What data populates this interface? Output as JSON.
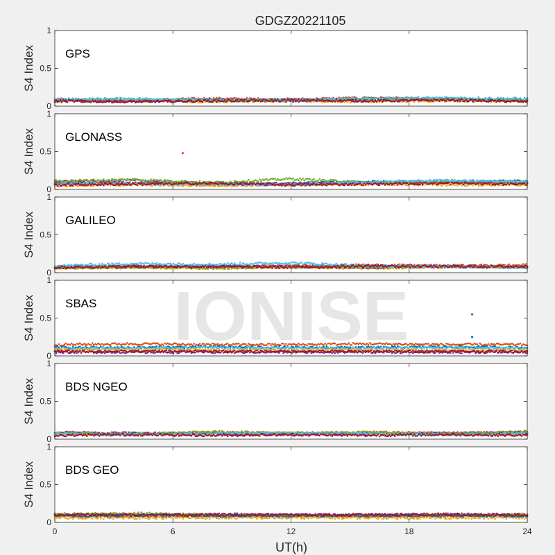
{
  "figure": {
    "title": "GDGZ20221105",
    "xlabel": "UT(h)",
    "watermark": "IONISE"
  },
  "chart_data": [
    {
      "type": "scatter",
      "constellation": "GPS",
      "ylabel": "S4 Index",
      "xlim": [
        0,
        24
      ],
      "ylim": [
        0,
        1
      ],
      "xticks": [
        "0",
        "6",
        "12",
        "18",
        "24"
      ],
      "yticks": [
        "0",
        "0.5",
        "1"
      ],
      "baseline_series": [
        {
          "color": "#0072bd",
          "y": [
            0.08,
            0.07,
            0.09,
            0.08,
            0.1,
            0.09,
            0.08
          ]
        },
        {
          "color": "#d95319",
          "y": [
            0.09,
            0.08,
            0.1,
            0.09,
            0.11,
            0.09,
            0.08
          ]
        },
        {
          "color": "#edb120",
          "y": [
            0.06,
            0.07,
            0.06,
            0.07,
            0.06,
            0.07,
            0.06
          ]
        },
        {
          "color": "#7e2f8e",
          "y": [
            0.07,
            0.06,
            0.08,
            0.07,
            0.08,
            0.09,
            0.07
          ]
        },
        {
          "color": "#77ac30",
          "y": [
            0.08,
            0.09,
            0.07,
            0.08,
            0.09,
            0.1,
            0.08
          ]
        },
        {
          "color": "#4dbeee",
          "y": [
            0.09,
            0.1,
            0.08,
            0.09,
            0.1,
            0.11,
            0.1
          ]
        },
        {
          "color": "#a2142f",
          "y": [
            0.07,
            0.06,
            0.07,
            0.08,
            0.07,
            0.08,
            0.06
          ]
        }
      ],
      "outliers": []
    },
    {
      "type": "scatter",
      "constellation": "GLONASS",
      "ylabel": "S4 Index",
      "xlim": [
        0,
        24
      ],
      "ylim": [
        0,
        1
      ],
      "xticks": [
        "0",
        "6",
        "12",
        "18",
        "24"
      ],
      "yticks": [
        "0",
        "0.5",
        "1"
      ],
      "baseline_series": [
        {
          "color": "#0072bd",
          "y": [
            0.09,
            0.08,
            0.07,
            0.08,
            0.1,
            0.1,
            0.11
          ]
        },
        {
          "color": "#d95319",
          "y": [
            0.07,
            0.08,
            0.06,
            0.07,
            0.08,
            0.09,
            0.08
          ]
        },
        {
          "color": "#edb120",
          "y": [
            0.05,
            0.06,
            0.05,
            0.06,
            0.07,
            0.06,
            0.06
          ]
        },
        {
          "color": "#7e2f8e",
          "y": [
            0.1,
            0.12,
            0.08,
            0.07,
            0.09,
            0.1,
            0.09
          ]
        },
        {
          "color": "#77ac30",
          "y": [
            0.11,
            0.13,
            0.09,
            0.14,
            0.09,
            0.11,
            0.1
          ]
        },
        {
          "color": "#4dbeee",
          "y": [
            0.08,
            0.07,
            0.07,
            0.06,
            0.1,
            0.12,
            0.1
          ]
        },
        {
          "color": "#a2142f",
          "y": [
            0.06,
            0.07,
            0.08,
            0.06,
            0.07,
            0.08,
            0.07
          ]
        }
      ],
      "outliers": [
        {
          "x": 6.5,
          "y": 0.48,
          "color": "#d95319"
        }
      ]
    },
    {
      "type": "scatter",
      "constellation": "GALILEO",
      "ylabel": "S4 Index",
      "xlim": [
        0,
        24
      ],
      "ylim": [
        0,
        1
      ],
      "xticks": [
        "0",
        "6",
        "12",
        "18",
        "24"
      ],
      "yticks": [
        "0",
        "0.5",
        "1"
      ],
      "baseline_series": [
        {
          "color": "#0072bd",
          "y": [
            0.07,
            0.08,
            0.07,
            0.08,
            0.07,
            0.08,
            0.07
          ]
        },
        {
          "color": "#d95319",
          "y": [
            0.08,
            0.09,
            0.08,
            0.09,
            0.1,
            0.09,
            0.1
          ]
        },
        {
          "color": "#edb120",
          "y": [
            0.06,
            0.07,
            0.06,
            0.07,
            0.06,
            0.07,
            0.08
          ]
        },
        {
          "color": "#7e2f8e",
          "y": [
            0.07,
            0.08,
            0.09,
            0.08,
            0.07,
            0.09,
            0.08
          ]
        },
        {
          "color": "#77ac30",
          "y": [
            0.06,
            0.07,
            0.06,
            0.08,
            0.07,
            0.08,
            0.07
          ]
        },
        {
          "color": "#4dbeee",
          "y": [
            0.09,
            0.12,
            0.11,
            0.13,
            0.09,
            0.08,
            0.07
          ]
        },
        {
          "color": "#a2142f",
          "y": [
            0.07,
            0.08,
            0.08,
            0.07,
            0.09,
            0.08,
            0.08
          ]
        }
      ],
      "outliers": []
    },
    {
      "type": "scatter",
      "constellation": "SBAS",
      "ylabel": "S4 Index",
      "xlim": [
        0,
        24
      ],
      "ylim": [
        0,
        1
      ],
      "xticks": [
        "0",
        "6",
        "12",
        "18",
        "24"
      ],
      "yticks": [
        "0",
        "0.5",
        "1"
      ],
      "baseline_series": [
        {
          "color": "#d95319",
          "y": [
            0.15,
            0.16,
            0.15,
            0.15,
            0.16,
            0.15,
            0.15
          ]
        },
        {
          "color": "#0072bd",
          "y": [
            0.11,
            0.11,
            0.12,
            0.11,
            0.11,
            0.12,
            0.11
          ]
        },
        {
          "color": "#4dbeee",
          "y": [
            0.1,
            0.1,
            0.11,
            0.1,
            0.1,
            0.11,
            0.1
          ]
        },
        {
          "color": "#edb120",
          "y": [
            0.08,
            0.08,
            0.08,
            0.08,
            0.08,
            0.08,
            0.08
          ]
        },
        {
          "color": "#7e2f8e",
          "y": [
            0.05,
            0.05,
            0.05,
            0.05,
            0.05,
            0.05,
            0.05
          ]
        },
        {
          "color": "#a2142f",
          "y": [
            0.06,
            0.06,
            0.06,
            0.06,
            0.06,
            0.06,
            0.06
          ]
        }
      ],
      "outliers": [
        {
          "x": 21.2,
          "y": 0.55,
          "color": "#0072bd"
        },
        {
          "x": 21.2,
          "y": 0.25,
          "color": "#0072bd"
        }
      ]
    },
    {
      "type": "scatter",
      "constellation": "BDS NGEO",
      "ylabel": "S4 Index",
      "xlim": [
        0,
        24
      ],
      "ylim": [
        0,
        1
      ],
      "xticks": [
        "0",
        "6",
        "12",
        "18",
        "24"
      ],
      "yticks": [
        "0",
        "0.5",
        "1"
      ],
      "baseline_series": [
        {
          "color": "#0072bd",
          "y": [
            0.07,
            0.06,
            0.08,
            0.07,
            0.08,
            0.07,
            0.06
          ]
        },
        {
          "color": "#d95319",
          "y": [
            0.08,
            0.07,
            0.09,
            0.08,
            0.09,
            0.08,
            0.09
          ]
        },
        {
          "color": "#edb120",
          "y": [
            0.06,
            0.07,
            0.06,
            0.07,
            0.08,
            0.07,
            0.06
          ]
        },
        {
          "color": "#7e2f8e",
          "y": [
            0.09,
            0.08,
            0.07,
            0.06,
            0.07,
            0.08,
            0.09
          ]
        },
        {
          "color": "#77ac30",
          "y": [
            0.08,
            0.07,
            0.1,
            0.08,
            0.09,
            0.07,
            0.1
          ]
        },
        {
          "color": "#4dbeee",
          "y": [
            0.07,
            0.06,
            0.07,
            0.08,
            0.07,
            0.06,
            0.07
          ]
        },
        {
          "color": "#a2142f",
          "y": [
            0.05,
            0.06,
            0.05,
            0.06,
            0.05,
            0.06,
            0.05
          ]
        }
      ],
      "outliers": []
    },
    {
      "type": "scatter",
      "constellation": "BDS GEO",
      "ylabel": "S4 Index",
      "xlim": [
        0,
        24
      ],
      "ylim": [
        0,
        1
      ],
      "xticks": [
        "0",
        "6",
        "12",
        "18",
        "24"
      ],
      "yticks": [
        "0",
        "0.5",
        "1"
      ],
      "baseline_series": [
        {
          "color": "#7e2f8e",
          "y": [
            0.1,
            0.1,
            0.11,
            0.1,
            0.1,
            0.11,
            0.1
          ]
        },
        {
          "color": "#77ac30",
          "y": [
            0.11,
            0.12,
            0.1,
            0.09,
            0.09,
            0.1,
            0.1
          ]
        },
        {
          "color": "#d95319",
          "y": [
            0.08,
            0.08,
            0.08,
            0.08,
            0.08,
            0.08,
            0.08
          ]
        },
        {
          "color": "#edb120",
          "y": [
            0.06,
            0.06,
            0.06,
            0.06,
            0.06,
            0.06,
            0.06
          ]
        },
        {
          "color": "#0072bd",
          "y": [
            0.09,
            0.09,
            0.09,
            0.09,
            0.09,
            0.09,
            0.09
          ]
        },
        {
          "color": "#a2142f",
          "y": [
            0.1,
            0.1,
            0.1,
            0.1,
            0.1,
            0.1,
            0.1
          ]
        }
      ],
      "outliers": []
    }
  ]
}
